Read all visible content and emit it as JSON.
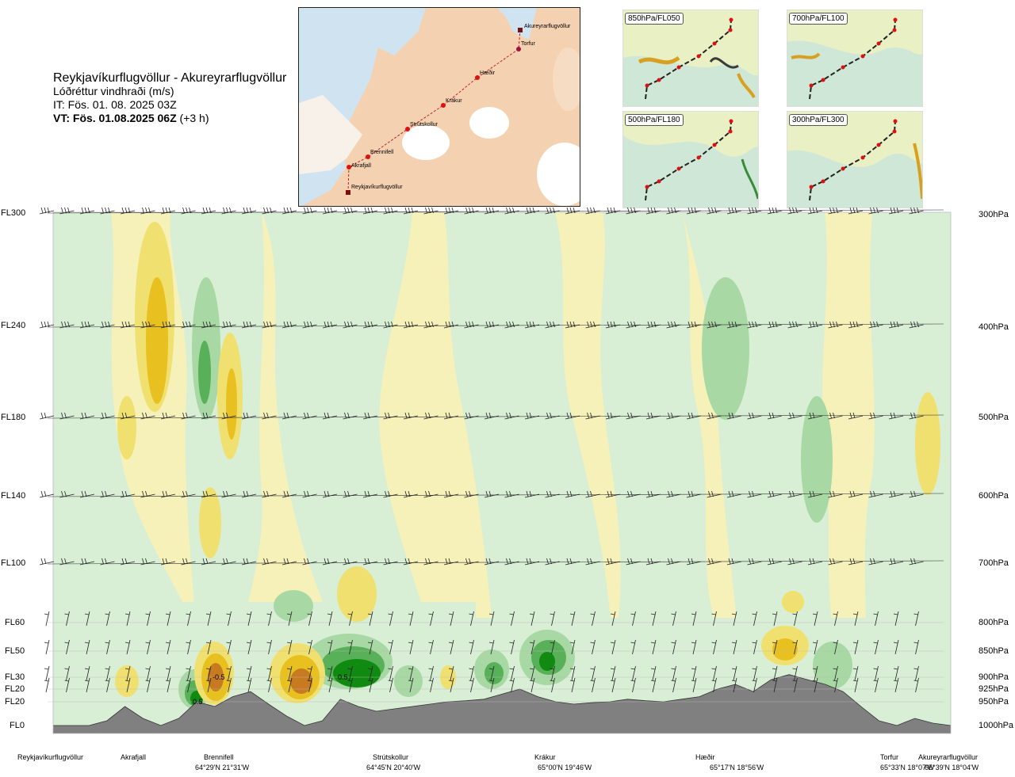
{
  "header": {
    "route": "Reykjavíkurflugvöllur - Akureyrarflugvöllur",
    "variable": "Lóðréttur vindhraði (m/s)",
    "issue_time": "IT: Fös. 01. 08. 2025 03Z",
    "valid_time_bold": "VT: Fös. 01.08.2025 06Z",
    "valid_time_offset": "(+3 h)"
  },
  "map": {
    "waypoints": [
      "Akureyrarflugvöllur",
      "Torfur",
      "Hæðir",
      "Krákur",
      "Strútskollur",
      "Brennifell",
      "Akrafjall",
      "Reykjavíkurflugvöllur"
    ]
  },
  "insets": [
    {
      "label": "850hPa/FL050"
    },
    {
      "label": "700hPa/FL100"
    },
    {
      "label": "500hPa/FL180"
    },
    {
      "label": "300hPa/FL300"
    }
  ],
  "levels": [
    {
      "fl": "FL300",
      "hpa": "300hPa"
    },
    {
      "fl": "FL240",
      "hpa": "400hPa"
    },
    {
      "fl": "FL180",
      "hpa": "500hPa"
    },
    {
      "fl": "FL140",
      "hpa": "600hPa"
    },
    {
      "fl": "FL100",
      "hpa": "700hPa"
    },
    {
      "fl": "FL60",
      "hpa": "800hPa"
    },
    {
      "fl": "FL50",
      "hpa": "850hPa"
    },
    {
      "fl": "FL30",
      "hpa": "900hPa"
    },
    {
      "fl": "FL20",
      "hpa": "925hPa"
    },
    {
      "fl": "FL20",
      "hpa": "950hPa"
    },
    {
      "fl": "FL0",
      "hpa": "1000hPa"
    }
  ],
  "locations": [
    {
      "name": "Reykjavíkurflugvöllur",
      "coord": ""
    },
    {
      "name": "Akrafjall",
      "coord": ""
    },
    {
      "name": "Brennifell",
      "coord": "64°29'N 21°31'W"
    },
    {
      "name": "Strútskollur",
      "coord": "64°45'N 20°40'W"
    },
    {
      "name": "Krákur",
      "coord": "65°00'N 19°46'W"
    },
    {
      "name": "Hæðir",
      "coord": "65°17'N 18°56'W"
    },
    {
      "name": "Torfur",
      "coord": "65°33'N 18°07'W"
    },
    {
      "name": "Akureyrarflugvöllur",
      "coord": "65°39'N 18°04'W"
    }
  ],
  "contour_labels": [
    "0.5",
    "-0.5",
    "0.5"
  ],
  "colors": {
    "updraft_weak": "#f5efb0",
    "updraft_mid": "#f0e070",
    "updraft_strong": "#e8c020",
    "updraft_max": "#c87a20",
    "downdraft_weak": "#d8efd6",
    "downdraft_mid": "#a8d8a4",
    "downdraft_strong": "#58b058",
    "downdraft_max": "#108a10",
    "terrain": "#808080"
  },
  "chart_data": {
    "type": "heatmap",
    "title": "Reykjavíkurflugvöllur - Akureyrarflugvöllur",
    "subtitle": "Lóðréttur vindhraði (m/s)",
    "y_levels_hpa": [
      300,
      400,
      500,
      600,
      700,
      800,
      850,
      900,
      925,
      950,
      1000
    ],
    "y_levels_fl": [
      "FL300",
      "FL240",
      "FL180",
      "FL140",
      "FL100",
      "FL60",
      "FL50",
      "FL30",
      "FL20",
      "FL20",
      "FL0"
    ],
    "x_waypoints": [
      "Reykjavíkurflugvöllur",
      "Akrafjall",
      "Brennifell",
      "Strútskollur",
      "Krákur",
      "Hæðir",
      "Torfur",
      "Akureyrarflugvöllur"
    ],
    "contour_values_labeled": [
      0.5,
      -0.5,
      0.5
    ],
    "terrain_profile_hpa": [
      1000,
      1000,
      1000,
      990,
      960,
      985,
      1000,
      985,
      950,
      960,
      940,
      930,
      955,
      980,
      1000,
      990,
      945,
      960,
      970,
      965,
      960,
      955,
      950,
      948,
      945,
      935,
      925,
      940,
      950,
      955,
      952,
      950,
      945,
      948,
      950,
      945,
      940,
      925,
      915,
      930,
      905,
      895,
      905,
      915,
      930,
      960,
      990,
      1000,
      985,
      995,
      1000
    ]
  }
}
